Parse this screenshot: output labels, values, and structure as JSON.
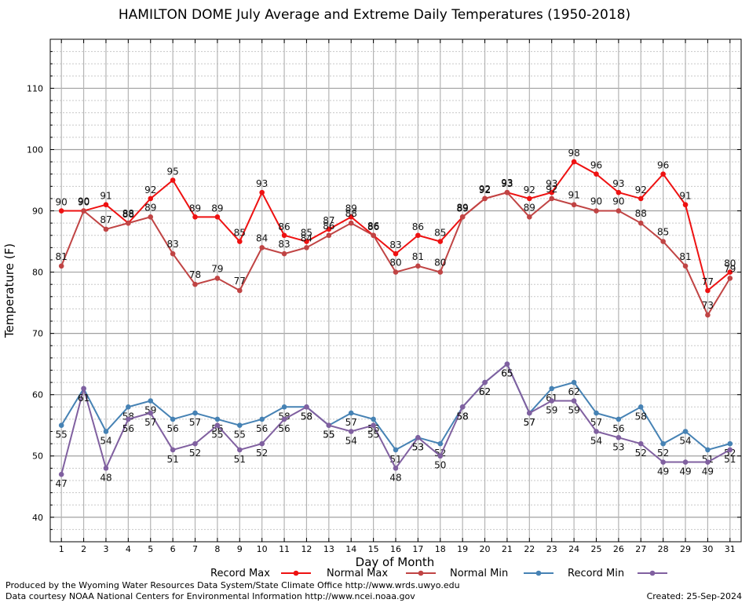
{
  "chart_data": {
    "type": "line",
    "title": "HAMILTON DOME July Average and Extreme Daily Temperatures (1950-2018)",
    "xlabel": "Day of Month",
    "ylabel": "Temperature (F)",
    "xlim": [
      0.5,
      31.5
    ],
    "ylim": [
      36,
      118
    ],
    "yticks": [
      40,
      50,
      60,
      70,
      80,
      90,
      100,
      110
    ],
    "grid": true,
    "legend_position": "bottom",
    "x": [
      1,
      2,
      3,
      4,
      5,
      6,
      7,
      8,
      9,
      10,
      11,
      12,
      13,
      14,
      15,
      16,
      17,
      18,
      19,
      20,
      21,
      22,
      23,
      24,
      25,
      26,
      27,
      28,
      29,
      30,
      31
    ],
    "series": [
      {
        "name": "Record Max",
        "color": "#ee1111",
        "values": [
          90,
          90,
          91,
          88,
          92,
          95,
          89,
          89,
          85,
          93,
          86,
          85,
          87,
          89,
          86,
          83,
          86,
          85,
          89,
          92,
          93,
          92,
          93,
          98,
          96,
          93,
          92,
          96,
          91,
          77,
          80
        ]
      },
      {
        "name": "Normal Max",
        "color": "#c04444",
        "values": [
          81,
          90,
          87,
          88,
          89,
          83,
          78,
          79,
          77,
          84,
          83,
          84,
          86,
          88,
          86,
          80,
          81,
          80,
          89,
          92,
          93,
          89,
          92,
          91,
          90,
          90,
          88,
          85,
          81,
          73,
          79
        ]
      },
      {
        "name": "Normal Min",
        "color": "#4682b4",
        "values": [
          55,
          61,
          54,
          58,
          59,
          56,
          57,
          56,
          55,
          56,
          58,
          58,
          55,
          57,
          56,
          51,
          53,
          52,
          58,
          62,
          65,
          57,
          61,
          62,
          57,
          56,
          58,
          52,
          54,
          51,
          52
        ]
      },
      {
        "name": "Record Min",
        "color": "#8060a0",
        "values": [
          47,
          61,
          48,
          56,
          57,
          51,
          52,
          55,
          51,
          52,
          56,
          58,
          55,
          54,
          55,
          48,
          53,
          50,
          58,
          62,
          65,
          57,
          59,
          59,
          54,
          53,
          52,
          49,
          49,
          49,
          51
        ]
      }
    ]
  },
  "footer": {
    "produced_by": "Produced by the Wyoming Water Resources Data System/State Climate Office http://www.wrds.uwyo.edu",
    "data_courtesy": "Data courtesy NOAA National Centers for Environmental Information http://www.ncei.noaa.gov",
    "created": "Created: 25-Sep-2024"
  }
}
